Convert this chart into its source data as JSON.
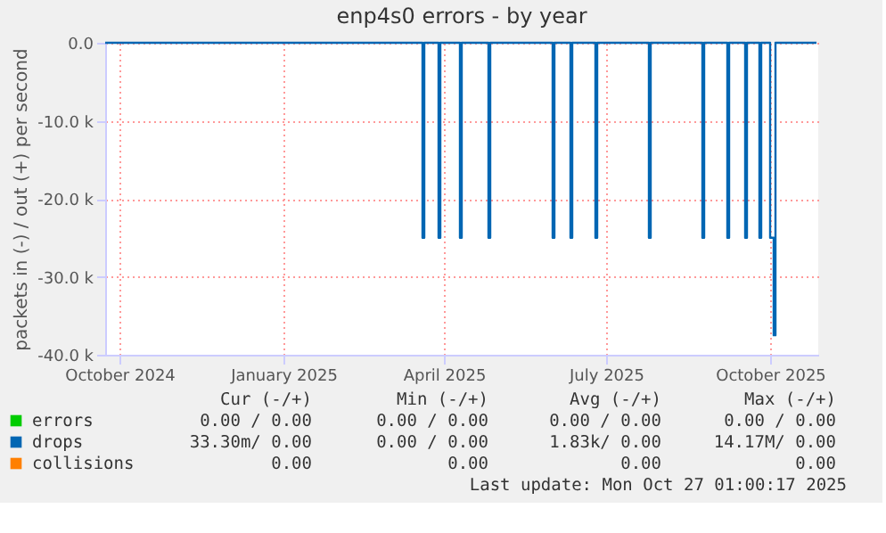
{
  "chart_data": {
    "type": "line",
    "title": "enp4s0 errors - by year",
    "ylabel": "packets in (-) / out (+) per second",
    "xlim": [
      "2024-09-23",
      "2025-10-28"
    ],
    "xticks": [
      {
        "value": "2024-10-01",
        "label": "October 2024"
      },
      {
        "value": "2025-01-01",
        "label": "January 2025"
      },
      {
        "value": "2025-04-01",
        "label": "April 2025"
      },
      {
        "value": "2025-07-01",
        "label": "July 2025"
      },
      {
        "value": "2025-10-01",
        "label": "October 2025"
      }
    ],
    "ylim": [
      -40000,
      0
    ],
    "yticks": [
      {
        "value": -40000,
        "label": "-40.0 k"
      },
      {
        "value": -30000,
        "label": "-30.0 k"
      },
      {
        "value": -20000,
        "label": "-20.0 k"
      },
      {
        "value": -10000,
        "label": "-10.0 k"
      },
      {
        "value": 0,
        "label": "0.0"
      }
    ],
    "grid": true,
    "legend": "bottom",
    "line_style": "solid",
    "series": [
      {
        "name": "errors",
        "color": "#00cc00",
        "type": "line"
      },
      {
        "name": "collisions",
        "color": "#ff8000",
        "type": "line"
      },
      {
        "name": "drops",
        "color": "#0066b3",
        "type": "step",
        "x": [
          "2024-09-23",
          "2025-03-20",
          "2025-03-21",
          "2025-03-29",
          "2025-03-30",
          "2025-04-10",
          "2025-04-11",
          "2025-04-26",
          "2025-04-27",
          "2025-06-01",
          "2025-06-02",
          "2025-06-11",
          "2025-06-12",
          "2025-06-25",
          "2025-06-26",
          "2025-07-25",
          "2025-07-26",
          "2025-08-24",
          "2025-08-25",
          "2025-09-07",
          "2025-09-08",
          "2025-09-17",
          "2025-09-18",
          "2025-09-25",
          "2025-09-26",
          "2025-10-01",
          "2025-10-03",
          "2025-10-04",
          "2025-10-27"
        ],
        "values": [
          0,
          -25000,
          0,
          -25000,
          0,
          -25000,
          0,
          -25000,
          0,
          -25000,
          0,
          -25000,
          0,
          -25000,
          0,
          -25000,
          0,
          -25000,
          0,
          -25000,
          0,
          -25000,
          0,
          -25000,
          0,
          -25000,
          -37500,
          0,
          0
        ]
      }
    ],
    "annotations": [
      "Cur (-/+)",
      "Min (-/+)",
      "Avg (-/+)",
      "Max (-/+)",
      "0.00 /  0.00",
      "0.00 /  0.00",
      "0.00 /  0.00",
      "0.00 /  0.00",
      "0.00",
      "0.00",
      "0.00",
      "0.00",
      "33.30m/  0.00",
      "0.00 /  0.00",
      "1.83k/  0.00",
      "14.17M/  0.00",
      "Last update: Mon Oct 27 01:00:17 2025"
    ]
  }
}
